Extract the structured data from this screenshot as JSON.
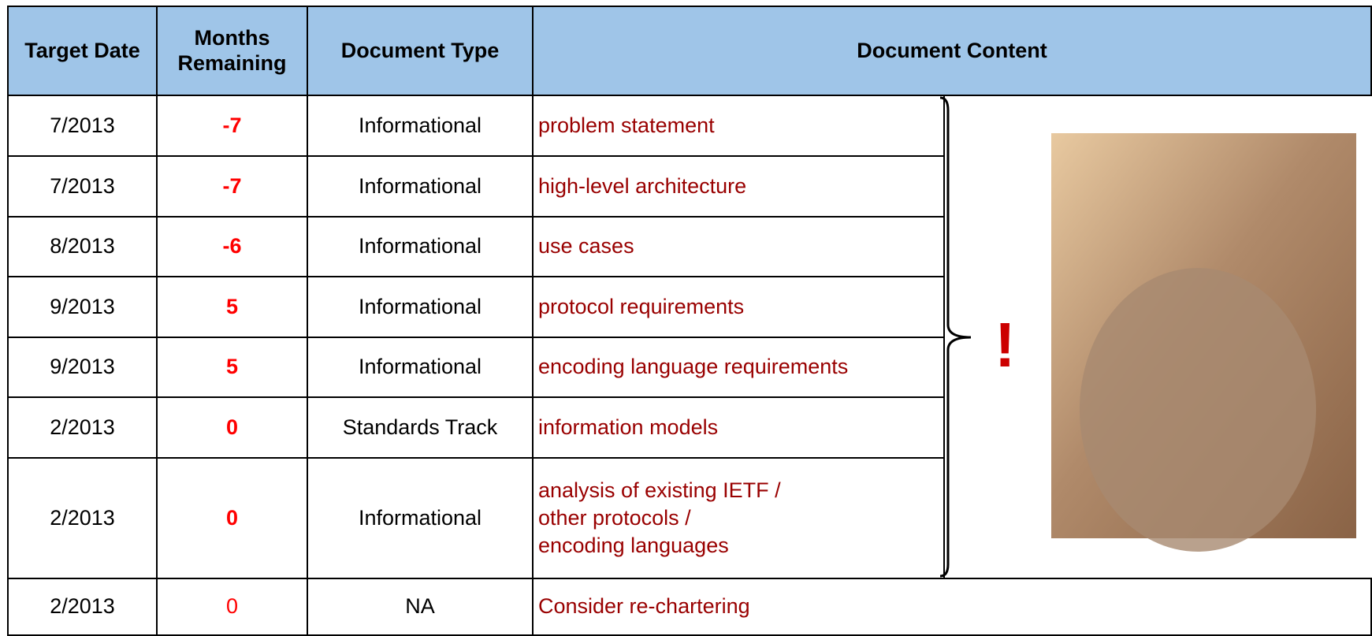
{
  "table": {
    "header": [
      "Target Date",
      "Months Remaining",
      "Document Type",
      "Document Content"
    ],
    "rows": [
      [
        "7/2013",
        "-7",
        "Informational",
        "problem statement"
      ],
      [
        "7/2013",
        "-7",
        "Informational",
        "high-level architecture"
      ],
      [
        "8/2013",
        "-6",
        "Informational",
        "use cases"
      ],
      [
        "9/2013",
        "5",
        "Informational",
        "protocol requirements"
      ],
      [
        "9/2013",
        "5",
        "Informational",
        "encoding language requirements"
      ],
      [
        "2/2013",
        "0",
        "Standards Track",
        "information models"
      ],
      [
        "2/2013",
        "0",
        "Informational",
        "analysis of existing IETF /\nother protocols /\nencoding languages"
      ],
      [
        "2/2013",
        "0",
        "NA",
        "Consider re-chartering"
      ]
    ]
  },
  "annotation": "!"
}
